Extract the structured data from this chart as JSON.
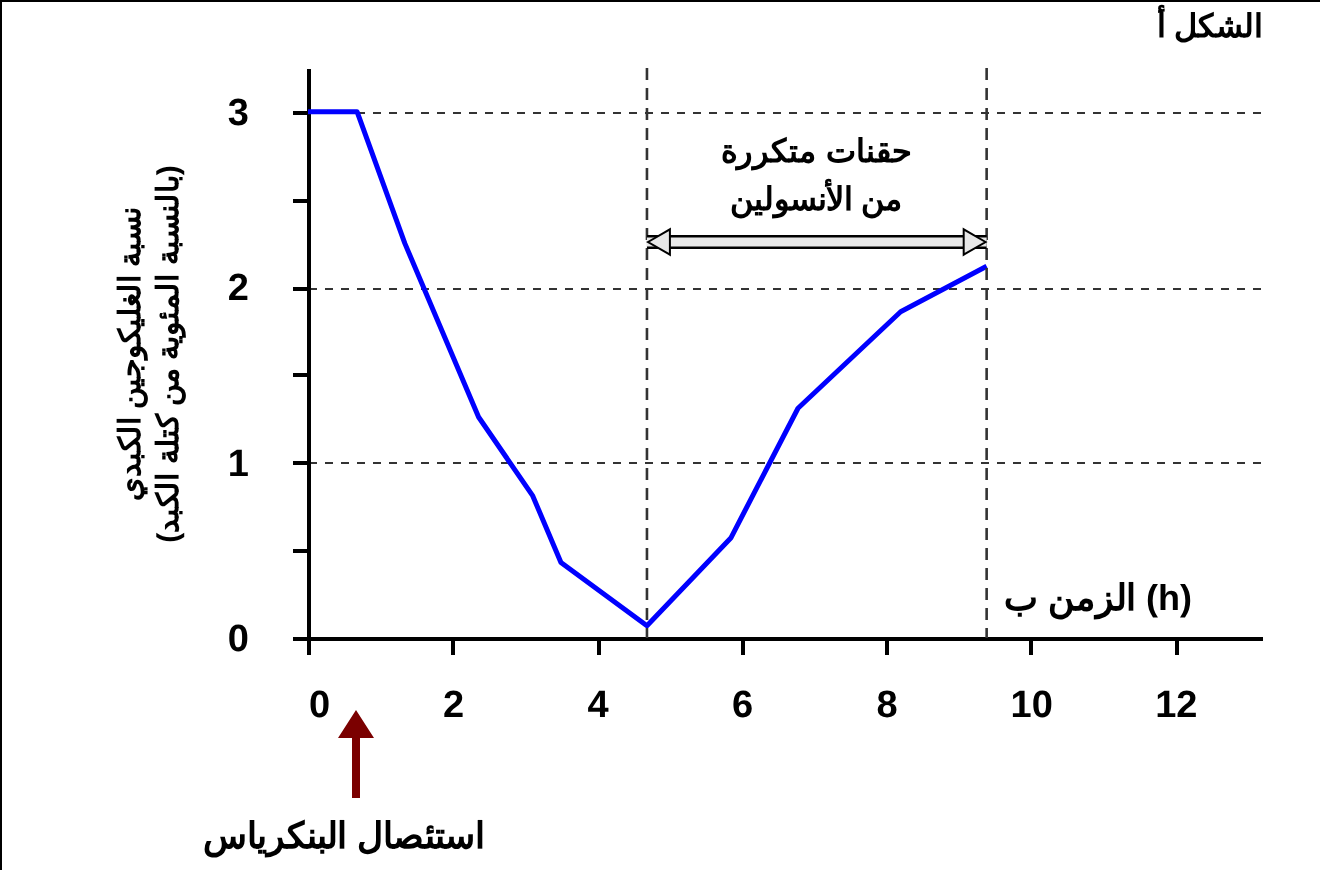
{
  "chart_data": {
    "type": "line",
    "title": "الشكل أ",
    "xlabel": "الزمن ب (h)",
    "ylabel": "نسبة الغليكوجين الكبدي\n(بالنسبة المئوية من كتلة الكبد)",
    "x": [
      0,
      0.68,
      1.34,
      2.36,
      3.11,
      3.5,
      4.69,
      5.85,
      6.78,
      8.2,
      9.39
    ],
    "series": [
      {
        "color": "#0000ff",
        "values": [
          3,
          3,
          2.25,
          1.26,
          0.81,
          0.43,
          0.07,
          0.57,
          1.31,
          1.86,
          2.12
        ]
      }
    ],
    "xlim": [
      0,
      13.2
    ],
    "xticks": [
      0,
      2,
      4,
      6,
      8,
      10,
      12
    ],
    "ylim": [
      0,
      3.25
    ],
    "yticks": [
      0,
      {
        "value": 0.5,
        "label": null
      },
      1,
      {
        "value": 1.5,
        "label": null
      },
      2,
      {
        "value": 2.5,
        "label": null
      },
      3
    ],
    "grid": "y",
    "marker": "none",
    "line_style": "solid",
    "ref_lines": [
      {
        "axis": "x",
        "value": 4.69,
        "line_style": "dashed"
      },
      {
        "axis": "x",
        "value": 9.39,
        "line_style": "dashed"
      }
    ],
    "annotations": [
      "حقنات متكررة\nمن الأنسولين",
      "استئصال البنكرياس"
    ]
  }
}
